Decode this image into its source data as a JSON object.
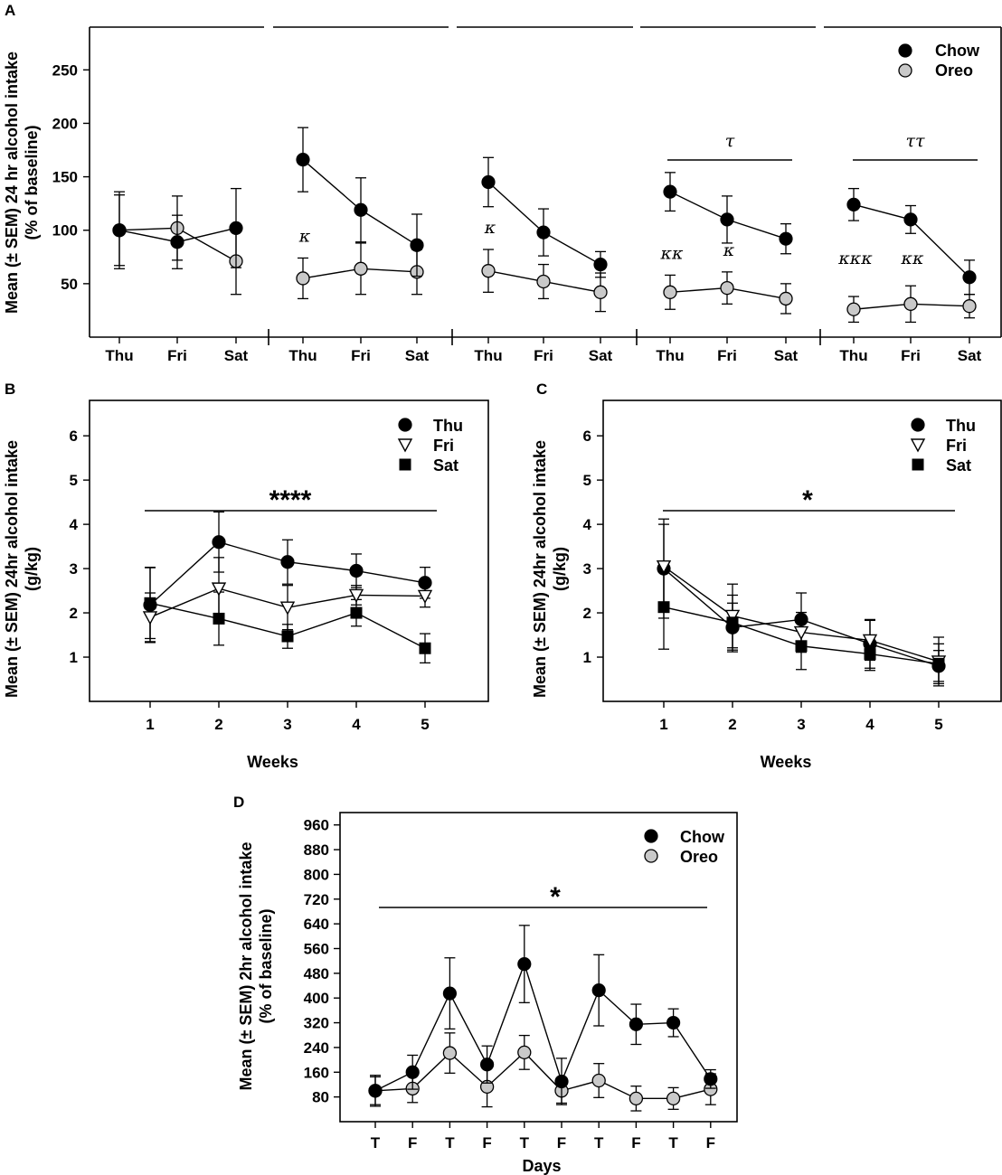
{
  "chart_data": [
    {
      "id": "A",
      "type": "line",
      "panel_label": "A",
      "ylabel": [
        "Mean (± SEM) 24 hr alcohol intake",
        "(% of baseline)"
      ],
      "ylim": [
        0,
        290
      ],
      "yticks": [
        50,
        100,
        150,
        200,
        250
      ],
      "legend": [
        {
          "name": "Chow",
          "marker": "circle-black"
        },
        {
          "name": "Oreo",
          "marker": "circle-gray"
        }
      ],
      "weeks": [
        {
          "categories": [
            "Thu",
            "Fri",
            "Sat"
          ],
          "series": [
            {
              "name": "Chow",
              "values": [
                100,
                89,
                102
              ],
              "errors": [
                36,
                25,
                37
              ]
            },
            {
              "name": "Oreo",
              "values": [
                100,
                102,
                71
              ],
              "errors": [
                33,
                30,
                31
              ]
            }
          ],
          "sig_line_label": "",
          "annotations": [
            "",
            "",
            ""
          ]
        },
        {
          "categories": [
            "Thu",
            "Fri",
            "Sat"
          ],
          "series": [
            {
              "name": "Chow",
              "values": [
                166,
                119,
                86
              ],
              "errors": [
                30,
                30,
                29
              ]
            },
            {
              "name": "Oreo",
              "values": [
                55,
                64,
                61
              ],
              "errors": [
                19,
                24,
                21
              ]
            }
          ],
          "sig_line_label": "",
          "annotations": [
            "κ",
            "",
            ""
          ]
        },
        {
          "categories": [
            "Thu",
            "Fri",
            "Sat"
          ],
          "series": [
            {
              "name": "Chow",
              "values": [
                145,
                98,
                68
              ],
              "errors": [
                23,
                22,
                12
              ]
            },
            {
              "name": "Oreo",
              "values": [
                62,
                52,
                42
              ],
              "errors": [
                20,
                16,
                18
              ]
            }
          ],
          "sig_line_label": "",
          "annotations": [
            "κ",
            "",
            ""
          ]
        },
        {
          "categories": [
            "Thu",
            "Fri",
            "Sat"
          ],
          "series": [
            {
              "name": "Chow",
              "values": [
                136,
                110,
                92
              ],
              "errors": [
                18,
                22,
                14
              ]
            },
            {
              "name": "Oreo",
              "values": [
                42,
                46,
                36
              ],
              "errors": [
                16,
                15,
                14
              ]
            }
          ],
          "sig_line_label": "τ",
          "annotations": [
            "κκ",
            "κ",
            ""
          ]
        },
        {
          "categories": [
            "Thu",
            "Fri",
            "Sat"
          ],
          "series": [
            {
              "name": "Chow",
              "values": [
                124,
                110,
                56
              ],
              "errors": [
                15,
                13,
                16
              ]
            },
            {
              "name": "Oreo",
              "values": [
                26,
                31,
                29
              ],
              "errors": [
                12,
                17,
                11
              ]
            }
          ],
          "sig_line_label": "ττ",
          "annotations": [
            "κκκ",
            "κκ",
            ""
          ]
        }
      ]
    },
    {
      "id": "B",
      "type": "line",
      "panel_label": "B",
      "ylabel": [
        "Mean (± SEM) 24hr alcohol intake",
        "(g/kg)"
      ],
      "xlabel": "Weeks",
      "categories": [
        "1",
        "2",
        "3",
        "4",
        "5"
      ],
      "ylim": [
        0,
        6.8
      ],
      "yticks": [
        1,
        2,
        3,
        4,
        5,
        6
      ],
      "significance": "****",
      "series": [
        {
          "name": "Thu",
          "marker": "circle-black",
          "values": [
            2.18,
            3.6,
            3.15,
            2.95,
            2.68
          ],
          "errors": [
            0.85,
            0.68,
            0.5,
            0.38,
            0.35
          ]
        },
        {
          "name": "Fri",
          "marker": "triangle-down-open",
          "values": [
            1.9,
            2.55,
            2.12,
            2.4,
            2.38
          ],
          "errors": [
            0.55,
            0.7,
            0.5,
            0.22,
            0.25
          ]
        },
        {
          "name": "Sat",
          "marker": "square-black",
          "values": [
            2.22,
            1.87,
            1.47,
            2.0,
            1.2
          ],
          "errors": [
            0.8,
            0.6,
            0.27,
            0.3,
            0.33
          ]
        }
      ]
    },
    {
      "id": "C",
      "type": "line",
      "panel_label": "C",
      "ylabel": [
        "Mean (± SEM) 24hr alcohol intake",
        "(g/kg)"
      ],
      "xlabel": "Weeks",
      "categories": [
        "1",
        "2",
        "3",
        "4",
        "5"
      ],
      "ylim": [
        0,
        6.8
      ],
      "yticks": [
        1,
        2,
        3,
        4,
        5,
        6
      ],
      "significance": "*",
      "series": [
        {
          "name": "Thu",
          "marker": "circle-black",
          "values": [
            3.0,
            1.67,
            1.85,
            1.3,
            0.8
          ],
          "errors": [
            1.12,
            0.55,
            0.6,
            0.55,
            0.35
          ]
        },
        {
          "name": "Fri",
          "marker": "triangle-down-open",
          "values": [
            3.05,
            1.93,
            1.56,
            1.38,
            0.9
          ],
          "errors": [
            0.95,
            0.72,
            0.45,
            0.45,
            0.55
          ]
        },
        {
          "name": "Sat",
          "marker": "square-black",
          "values": [
            2.13,
            1.78,
            1.25,
            1.07,
            0.85
          ],
          "errors": [
            0.95,
            0.62,
            0.53,
            0.37,
            0.45
          ]
        }
      ]
    },
    {
      "id": "D",
      "type": "line",
      "panel_label": "D",
      "ylabel": [
        "Mean (± SEM) 2hr alcohol intake",
        "(% of baseline)"
      ],
      "xlabel": "Days",
      "categories": [
        "T",
        "F",
        "T",
        "F",
        "T",
        "F",
        "T",
        "F",
        "T",
        "F"
      ],
      "ylim": [
        0,
        1000
      ],
      "yticks": [
        80,
        160,
        240,
        320,
        400,
        480,
        560,
        640,
        720,
        800,
        880,
        960
      ],
      "significance": "*",
      "series": [
        {
          "name": "Chow",
          "marker": "circle-black",
          "values": [
            100,
            160,
            415,
            185,
            510,
            130,
            425,
            315,
            320,
            138
          ],
          "errors": [
            50,
            55,
            115,
            60,
            125,
            75,
            115,
            65,
            45,
            30
          ]
        },
        {
          "name": "Oreo",
          "marker": "circle-gray",
          "values": [
            100,
            107,
            222,
            113,
            224,
            100,
            133,
            75,
            75,
            105
          ],
          "errors": [
            45,
            45,
            65,
            65,
            55,
            40,
            55,
            40,
            35,
            50
          ]
        }
      ]
    }
  ]
}
